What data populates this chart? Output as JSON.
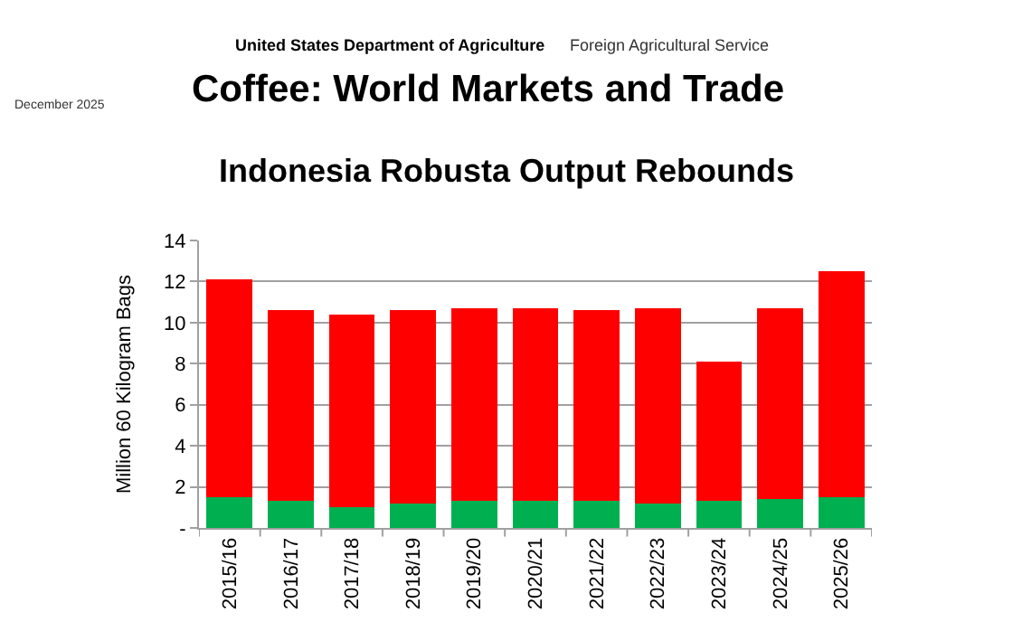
{
  "chart_data": {
    "type": "bar",
    "title": "Indonesia Robusta Output Rebounds",
    "ylabel": "Million 60 Kilogram Bags",
    "annotations": [
      "United States Department of Agriculture",
      "Foreign Agricultural Service",
      "Coffee: World Markets and Trade",
      "December 2025"
    ],
    "categories": [
      "2015/16",
      "2016/17",
      "2017/18",
      "2018/19",
      "2019/20",
      "2020/21",
      "2021/22",
      "2022/23",
      "2023/24",
      "2024/25",
      "2025/26"
    ],
    "stacked": true,
    "series": [
      {
        "color": "#00b050",
        "values": [
          1.5,
          1.3,
          1.0,
          1.2,
          1.3,
          1.3,
          1.3,
          1.2,
          1.3,
          1.4,
          1.5
        ]
      },
      {
        "color": "#ff0000",
        "values": [
          10.6,
          9.3,
          9.4,
          9.4,
          9.4,
          9.4,
          9.3,
          9.5,
          6.8,
          9.3,
          11.0
        ]
      }
    ],
    "ylim": [
      0,
      14
    ],
    "yticks": [
      {
        "value": 0,
        "label": "-"
      },
      2,
      4,
      6,
      8,
      10,
      12,
      14
    ],
    "grid": "y"
  }
}
